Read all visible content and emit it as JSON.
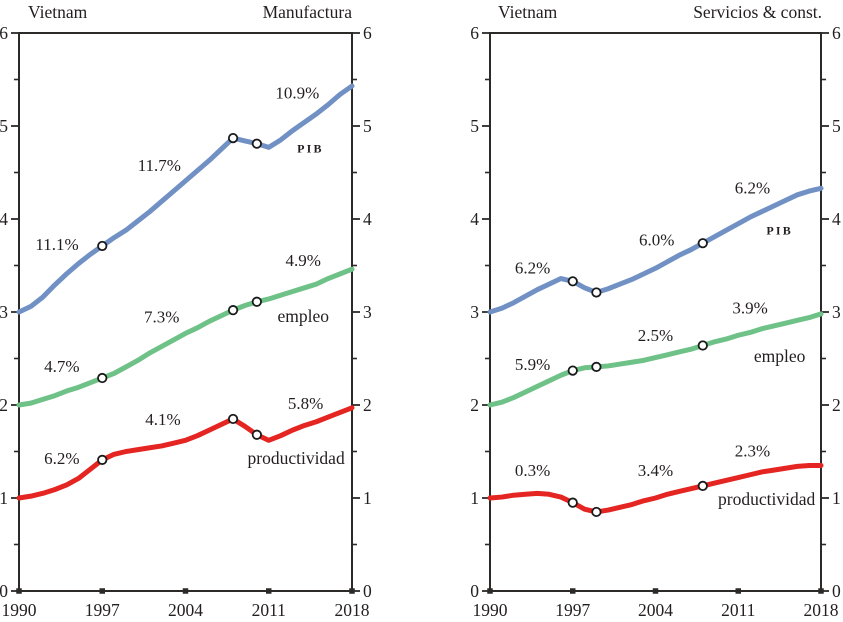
{
  "figure": {
    "background": "#ffffff",
    "text_color": "#231f20",
    "axis_color": "#2b2a29",
    "marker_fill": "#ffffff",
    "marker_stroke": "#1a1a1a"
  },
  "chart_data": [
    {
      "type": "line",
      "title_left": "Vietnam",
      "title_right": "Manufactura",
      "xlim": [
        1990,
        2018
      ],
      "ylim": [
        0,
        6
      ],
      "grid": false,
      "legend_position": "none",
      "x_ticks": [
        "1990",
        "1997",
        "2004",
        "2011",
        "2018"
      ],
      "x_tick_values": [
        1990,
        1997,
        2004,
        2011,
        2018
      ],
      "y_major_ticks": [
        0,
        1,
        2,
        3,
        4,
        5,
        6
      ],
      "y_minor_ticks": [
        0.5,
        1.5,
        2.5,
        3.5,
        4.5,
        5.5
      ],
      "x": [
        1990,
        1991,
        1992,
        1993,
        1994,
        1995,
        1996,
        1997,
        1998,
        1999,
        2000,
        2001,
        2002,
        2003,
        2004,
        2005,
        2006,
        2007,
        2008,
        2009,
        2010,
        2011,
        2012,
        2013,
        2014,
        2015,
        2016,
        2017,
        2018
      ],
      "series": [
        {
          "name": "PIB",
          "color": "#7191c5",
          "values": [
            3.0,
            3.06,
            3.16,
            3.29,
            3.41,
            3.52,
            3.62,
            3.71,
            3.8,
            3.88,
            3.98,
            4.08,
            4.19,
            4.3,
            4.41,
            4.52,
            4.63,
            4.75,
            4.87,
            4.84,
            4.81,
            4.77,
            4.85,
            4.95,
            5.04,
            5.13,
            5.23,
            5.34,
            5.43
          ],
          "markers": [
            [
              1997,
              3.71
            ],
            [
              2008,
              4.87
            ],
            [
              2010,
              4.81
            ]
          ]
        },
        {
          "name": "empleo",
          "color": "#6fc287",
          "values": [
            2.0,
            2.02,
            2.06,
            2.1,
            2.15,
            2.19,
            2.24,
            2.29,
            2.34,
            2.41,
            2.48,
            2.56,
            2.63,
            2.7,
            2.77,
            2.83,
            2.9,
            2.96,
            3.02,
            3.07,
            3.11,
            3.14,
            3.18,
            3.22,
            3.26,
            3.3,
            3.36,
            3.41,
            3.46
          ],
          "markers": [
            [
              1997,
              2.29
            ],
            [
              2008,
              3.02
            ],
            [
              2010,
              3.11
            ]
          ]
        },
        {
          "name": "productividad",
          "color": "#e42522",
          "values": [
            1.0,
            1.02,
            1.05,
            1.09,
            1.14,
            1.21,
            1.31,
            1.41,
            1.47,
            1.5,
            1.52,
            1.54,
            1.56,
            1.59,
            1.62,
            1.67,
            1.73,
            1.79,
            1.85,
            1.77,
            1.68,
            1.62,
            1.67,
            1.73,
            1.78,
            1.82,
            1.87,
            1.92,
            1.97
          ],
          "markers": [
            [
              1997,
              1.41
            ],
            [
              2008,
              1.85
            ],
            [
              2010,
              1.68
            ]
          ]
        }
      ],
      "annotations": [
        {
          "text": "11.1%",
          "x": 1993.2,
          "y": 3.73,
          "kind": "percent"
        },
        {
          "text": "11.7%",
          "x": 2001.8,
          "y": 4.58,
          "kind": "percent"
        },
        {
          "text": "10.9%",
          "x": 2013.4,
          "y": 5.36,
          "kind": "percent"
        },
        {
          "text": "PIB",
          "x": 2014.5,
          "y": 4.76,
          "kind": "caps"
        },
        {
          "text": "4.9%",
          "x": 2013.9,
          "y": 3.56,
          "kind": "percent"
        },
        {
          "text": "empleo",
          "x": 2013.9,
          "y": 2.96,
          "kind": "series"
        },
        {
          "text": "7.3%",
          "x": 2002.0,
          "y": 2.95,
          "kind": "percent"
        },
        {
          "text": "4.7%",
          "x": 1993.6,
          "y": 2.42,
          "kind": "percent"
        },
        {
          "text": "4.1%",
          "x": 2002.1,
          "y": 1.85,
          "kind": "percent"
        },
        {
          "text": "5.8%",
          "x": 2014.1,
          "y": 2.02,
          "kind": "percent"
        },
        {
          "text": "6.2%",
          "x": 1993.6,
          "y": 1.43,
          "kind": "percent"
        },
        {
          "text": "productividad",
          "x": 2013.3,
          "y": 1.43,
          "kind": "series"
        }
      ]
    },
    {
      "type": "line",
      "title_left": "Vietnam",
      "title_right": "Servicios & const.",
      "xlim": [
        1990,
        2018
      ],
      "ylim": [
        0,
        6
      ],
      "grid": false,
      "legend_position": "none",
      "x_ticks": [
        "1990",
        "1997",
        "2004",
        "2011",
        "2018"
      ],
      "x_tick_values": [
        1990,
        1997,
        2004,
        2011,
        2018
      ],
      "y_major_ticks": [
        0,
        1,
        2,
        3,
        4,
        5,
        6
      ],
      "y_minor_ticks": [
        0.5,
        1.5,
        2.5,
        3.5,
        4.5,
        5.5
      ],
      "x": [
        1990,
        1991,
        1992,
        1993,
        1994,
        1995,
        1996,
        1997,
        1998,
        1999,
        2000,
        2001,
        2002,
        2003,
        2004,
        2005,
        2006,
        2007,
        2008,
        2009,
        2010,
        2011,
        2012,
        2013,
        2014,
        2015,
        2016,
        2017,
        2018
      ],
      "series": [
        {
          "name": "PIB",
          "color": "#7191c5",
          "values": [
            3.0,
            3.04,
            3.1,
            3.17,
            3.24,
            3.3,
            3.36,
            3.33,
            3.26,
            3.21,
            3.25,
            3.3,
            3.35,
            3.41,
            3.47,
            3.54,
            3.61,
            3.67,
            3.74,
            3.81,
            3.88,
            3.95,
            4.02,
            4.08,
            4.14,
            4.2,
            4.26,
            4.3,
            4.33
          ],
          "markers": [
            [
              1997,
              3.33
            ],
            [
              1999,
              3.21
            ],
            [
              2008,
              3.74
            ]
          ]
        },
        {
          "name": "empleo",
          "color": "#6fc287",
          "values": [
            2.0,
            2.03,
            2.08,
            2.14,
            2.2,
            2.26,
            2.32,
            2.37,
            2.4,
            2.41,
            2.42,
            2.44,
            2.46,
            2.48,
            2.51,
            2.54,
            2.57,
            2.6,
            2.64,
            2.68,
            2.71,
            2.75,
            2.78,
            2.82,
            2.85,
            2.88,
            2.91,
            2.94,
            2.98
          ],
          "markers": [
            [
              1997,
              2.37
            ],
            [
              1999,
              2.41
            ],
            [
              2008,
              2.64
            ]
          ]
        },
        {
          "name": "productividad",
          "color": "#e42522",
          "values": [
            1.0,
            1.01,
            1.03,
            1.04,
            1.05,
            1.04,
            1.01,
            0.95,
            0.88,
            0.85,
            0.87,
            0.9,
            0.93,
            0.97,
            1.0,
            1.04,
            1.07,
            1.1,
            1.13,
            1.16,
            1.19,
            1.22,
            1.25,
            1.28,
            1.3,
            1.32,
            1.34,
            1.35,
            1.35
          ],
          "markers": [
            [
              1997,
              0.95
            ],
            [
              1999,
              0.85
            ],
            [
              2008,
              1.13
            ]
          ]
        }
      ],
      "annotations": [
        {
          "text": "6.2%",
          "x": 1993.6,
          "y": 3.48,
          "kind": "percent"
        },
        {
          "text": "6.0%",
          "x": 2004.1,
          "y": 3.78,
          "kind": "percent"
        },
        {
          "text": "6.2%",
          "x": 2012.2,
          "y": 4.34,
          "kind": "percent"
        },
        {
          "text": "PIB",
          "x": 2014.5,
          "y": 3.88,
          "kind": "caps"
        },
        {
          "text": "3.9%",
          "x": 2012.0,
          "y": 3.05,
          "kind": "percent"
        },
        {
          "text": "2.5%",
          "x": 2004.0,
          "y": 2.75,
          "kind": "percent"
        },
        {
          "text": "5.9%",
          "x": 1993.6,
          "y": 2.44,
          "kind": "percent"
        },
        {
          "text": "empleo",
          "x": 2014.5,
          "y": 2.53,
          "kind": "series"
        },
        {
          "text": "2.3%",
          "x": 2012.2,
          "y": 1.51,
          "kind": "percent"
        },
        {
          "text": "3.4%",
          "x": 2004.0,
          "y": 1.3,
          "kind": "percent"
        },
        {
          "text": "0.3%",
          "x": 1993.6,
          "y": 1.3,
          "kind": "percent"
        },
        {
          "text": "productividad",
          "x": 2013.4,
          "y": 0.99,
          "kind": "series"
        }
      ]
    }
  ]
}
